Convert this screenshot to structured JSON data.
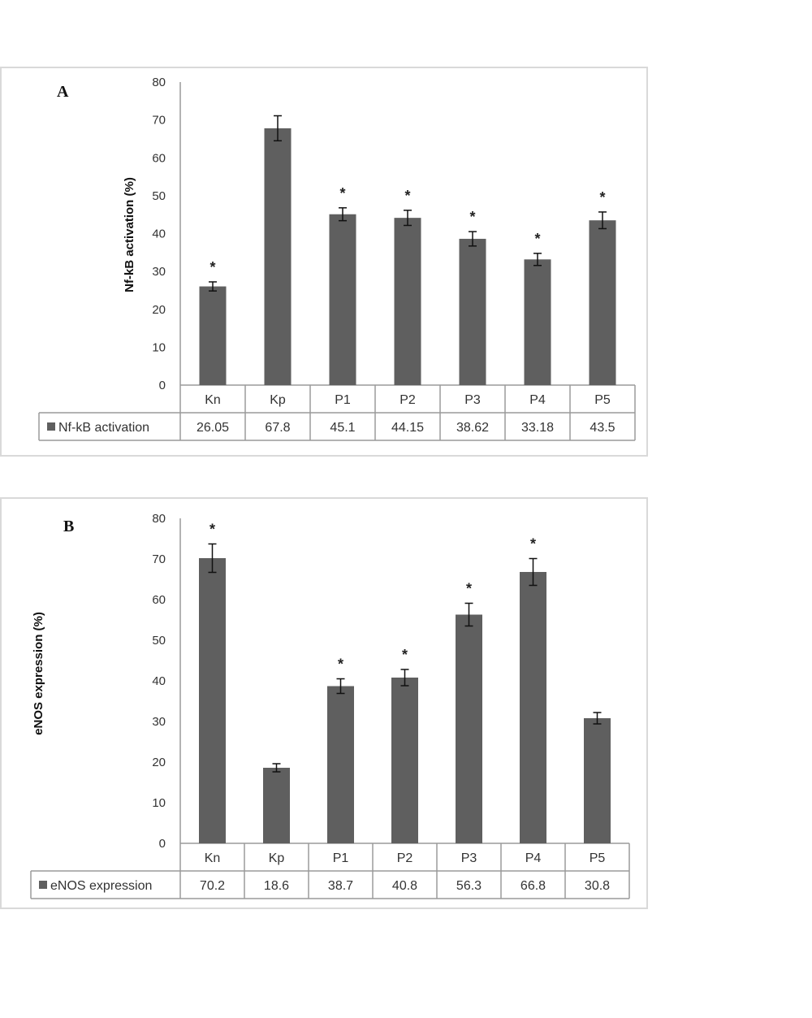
{
  "colors": {
    "bar": "#5f5f5f",
    "axis": "#9a9a9a",
    "error": "#111111",
    "frame": "#d9d9d9"
  },
  "chart_data": [
    {
      "type": "bar",
      "panel_label": "A",
      "ylabel": "Nf-kB activation (%)",
      "ylim": [
        0,
        80
      ],
      "yticks": [
        0,
        10,
        20,
        30,
        40,
        50,
        60,
        70,
        80
      ],
      "categories": [
        "Kn",
        "Kp",
        "P1",
        "P2",
        "P3",
        "P4",
        "P5"
      ],
      "series": [
        {
          "name": "Nf-kB activation",
          "values": [
            26.05,
            67.8,
            45.1,
            44.15,
            38.62,
            33.18,
            43.5
          ],
          "value_labels": [
            "26.05",
            "67.8",
            "45.1",
            "44.15",
            "38.62",
            "33.18",
            "43.5"
          ],
          "errors": [
            1.2,
            3.3,
            1.7,
            2.0,
            1.9,
            1.6,
            2.2
          ],
          "significance": [
            "*",
            "",
            "*",
            "*",
            "*",
            "*",
            "*"
          ]
        }
      ],
      "legend": "data table below x-axis"
    },
    {
      "type": "bar",
      "panel_label": "B",
      "ylabel": "eNOS expression (%)",
      "ylim": [
        0,
        80
      ],
      "yticks": [
        0,
        10,
        20,
        30,
        40,
        50,
        60,
        70,
        80
      ],
      "categories": [
        "Kn",
        "Kp",
        "P1",
        "P2",
        "P3",
        "P4",
        "P5"
      ],
      "series": [
        {
          "name": "eNOS expression",
          "values": [
            70.2,
            18.6,
            38.7,
            40.8,
            56.3,
            66.8,
            30.8
          ],
          "value_labels": [
            "70.2",
            "18.6",
            "38.7",
            "40.8",
            "56.3",
            "66.8",
            "30.8"
          ],
          "errors": [
            3.5,
            1.0,
            1.8,
            2.0,
            2.8,
            3.3,
            1.4
          ],
          "significance": [
            "*",
            "",
            "*",
            "*",
            "*",
            "*",
            ""
          ]
        }
      ],
      "legend": "data table below x-axis"
    }
  ]
}
